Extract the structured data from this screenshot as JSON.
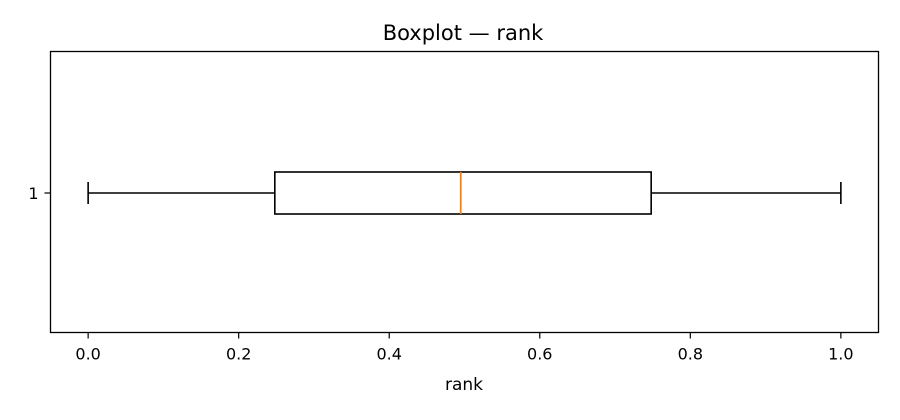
{
  "chart_data": {
    "type": "boxplot",
    "orientation": "horizontal",
    "title": "Boxplot — rank",
    "xlabel": "rank",
    "ylabel": "",
    "xlim": [
      -0.05,
      1.05
    ],
    "x_ticks": [
      0.0,
      0.2,
      0.4,
      0.6,
      0.8,
      1.0
    ],
    "x_tick_labels": [
      "0.0",
      "0.2",
      "0.4",
      "0.6",
      "0.8",
      "1.0"
    ],
    "categories": [
      "1"
    ],
    "series": [
      {
        "category": "1",
        "whisker_low": 0.0,
        "q1": 0.248,
        "median": 0.495,
        "q3": 0.748,
        "whisker_high": 1.0
      }
    ],
    "grid": false,
    "colors": {
      "box": "#000000",
      "median": "#ff7f0e",
      "whisker": "#000000"
    }
  }
}
